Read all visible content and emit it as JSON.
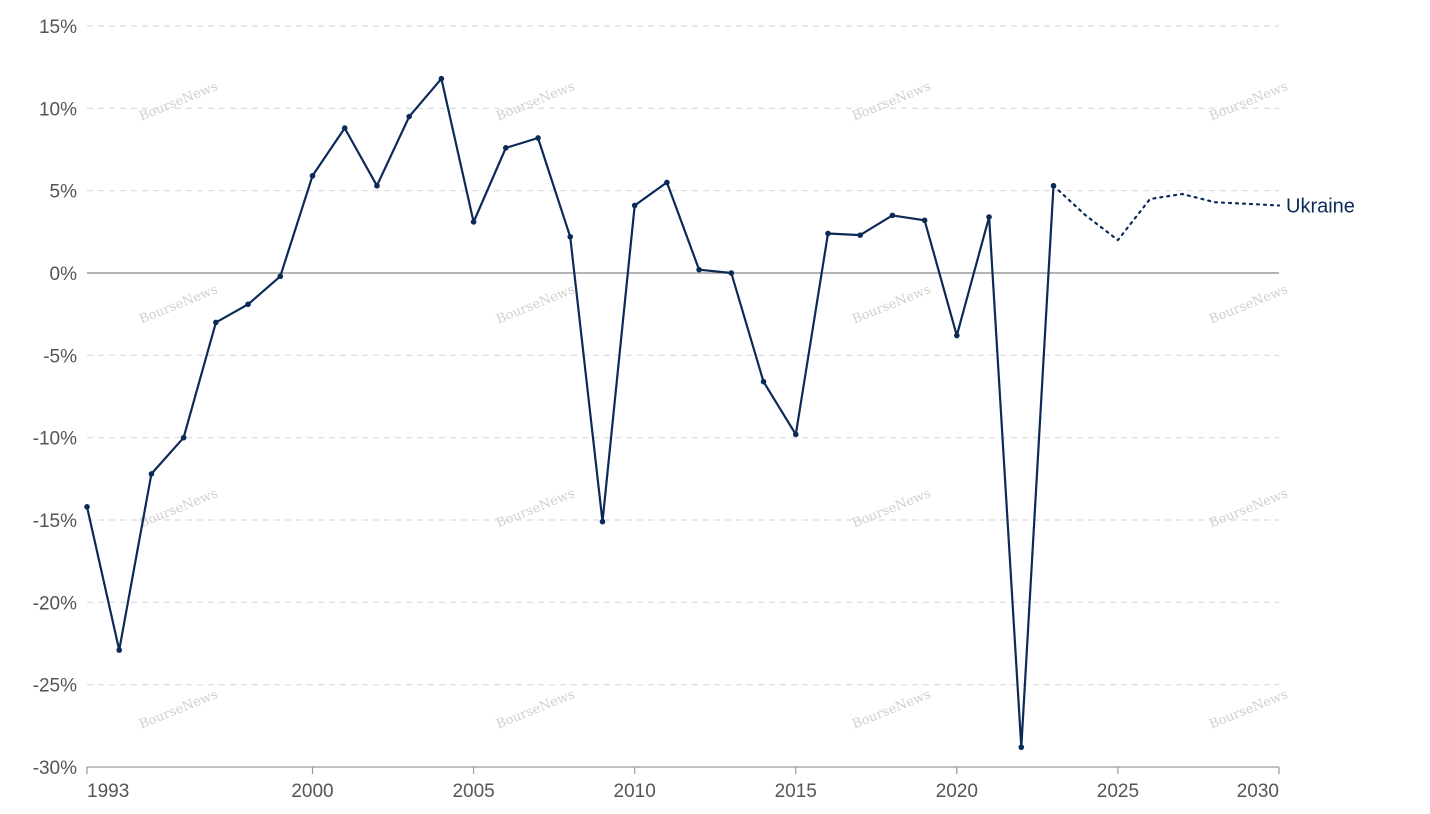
{
  "chart_data": {
    "type": "line",
    "title": "",
    "xlabel": "",
    "ylabel": "",
    "xlim": [
      1993,
      2030
    ],
    "ylim": [
      -30,
      15
    ],
    "x_ticks": [
      {
        "value": 1993,
        "label": "1993"
      },
      {
        "value": 2000,
        "label": "2000"
      },
      {
        "value": 2005,
        "label": "2005"
      },
      {
        "value": 2010,
        "label": "2010"
      },
      {
        "value": 2015,
        "label": "2015"
      },
      {
        "value": 2020,
        "label": "2020"
      },
      {
        "value": 2025,
        "label": "2025"
      },
      {
        "value": 2030,
        "label": "2030"
      }
    ],
    "y_ticks": [
      {
        "value": 15,
        "label": "15%"
      },
      {
        "value": 10,
        "label": "10%"
      },
      {
        "value": 5,
        "label": "5%"
      },
      {
        "value": 0,
        "label": "0%"
      },
      {
        "value": -5,
        "label": "-5%"
      },
      {
        "value": -10,
        "label": "-10%"
      },
      {
        "value": -15,
        "label": "-15%"
      },
      {
        "value": -20,
        "label": "-20%"
      },
      {
        "value": -25,
        "label": "-25%"
      },
      {
        "value": -30,
        "label": "-30%"
      }
    ],
    "grid": true,
    "series": [
      {
        "name": "Ukraine",
        "color": "#0b2a57",
        "actual": [
          {
            "x": 1993,
            "y": -14.2
          },
          {
            "x": 1994,
            "y": -22.9
          },
          {
            "x": 1995,
            "y": -12.2
          },
          {
            "x": 1996,
            "y": -10.0
          },
          {
            "x": 1997,
            "y": -3.0
          },
          {
            "x": 1998,
            "y": -1.9
          },
          {
            "x": 1999,
            "y": -0.2
          },
          {
            "x": 2000,
            "y": 5.9
          },
          {
            "x": 2001,
            "y": 8.8
          },
          {
            "x": 2002,
            "y": 5.3
          },
          {
            "x": 2003,
            "y": 9.5
          },
          {
            "x": 2004,
            "y": 11.8
          },
          {
            "x": 2005,
            "y": 3.1
          },
          {
            "x": 2006,
            "y": 7.6
          },
          {
            "x": 2007,
            "y": 8.2
          },
          {
            "x": 2008,
            "y": 2.2
          },
          {
            "x": 2009,
            "y": -15.1
          },
          {
            "x": 2010,
            "y": 4.1
          },
          {
            "x": 2011,
            "y": 5.5
          },
          {
            "x": 2012,
            "y": 0.2
          },
          {
            "x": 2013,
            "y": 0.0
          },
          {
            "x": 2014,
            "y": -6.6
          },
          {
            "x": 2015,
            "y": -9.8
          },
          {
            "x": 2016,
            "y": 2.4
          },
          {
            "x": 2017,
            "y": 2.3
          },
          {
            "x": 2018,
            "y": 3.5
          },
          {
            "x": 2019,
            "y": 3.2
          },
          {
            "x": 2020,
            "y": -3.8
          },
          {
            "x": 2021,
            "y": 3.4
          },
          {
            "x": 2022,
            "y": -28.8
          },
          {
            "x": 2023,
            "y": 5.3
          }
        ],
        "projected": [
          {
            "x": 2023,
            "y": 5.3
          },
          {
            "x": 2024,
            "y": 3.5
          },
          {
            "x": 2025,
            "y": 2.0
          },
          {
            "x": 2026,
            "y": 4.5
          },
          {
            "x": 2027,
            "y": 4.8
          },
          {
            "x": 2028,
            "y": 4.3
          },
          {
            "x": 2029,
            "y": 4.2
          },
          {
            "x": 2030,
            "y": 4.1
          }
        ]
      }
    ],
    "watermark": "BourseNews"
  }
}
